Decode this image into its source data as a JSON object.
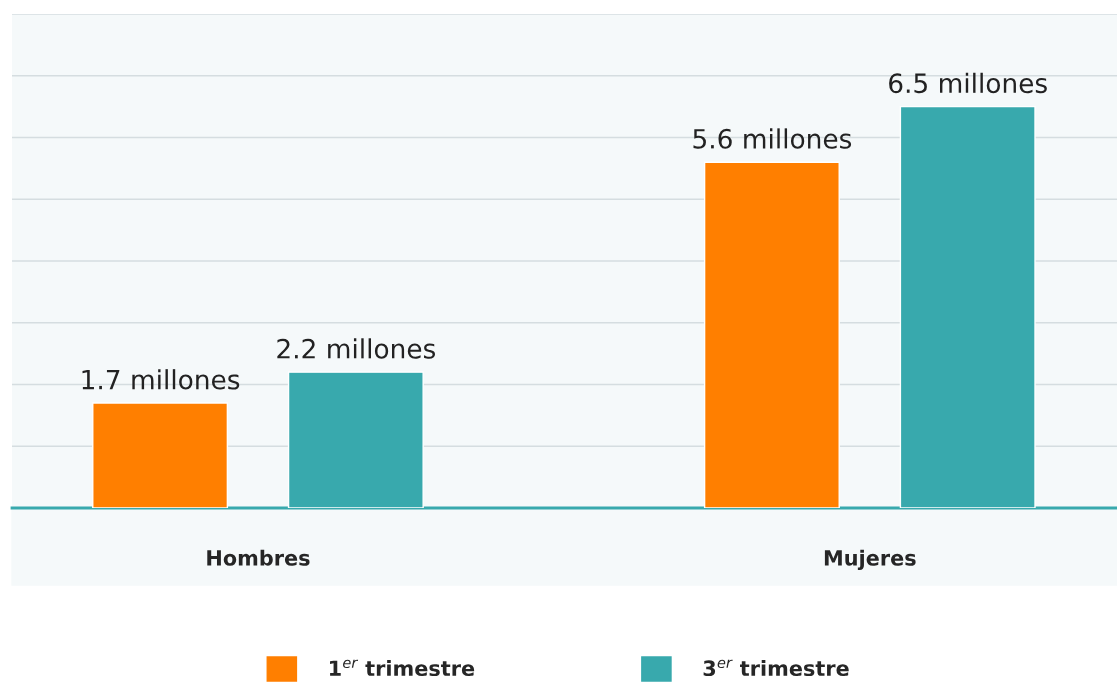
{
  "chart_data": {
    "type": "bar",
    "categories": [
      "Hombres",
      "Mujeres"
    ],
    "series": [
      {
        "name": "1$^{er}$ trimestre",
        "color": "#ff7f00",
        "values": [
          1.7,
          5.6
        ],
        "value_labels": [
          "1.7 millones",
          "5.6 millones"
        ]
      },
      {
        "name": "3$^{er}$ trimestre",
        "color": "#38a9ad",
        "values": [
          2.2,
          6.5
        ],
        "value_labels": [
          "2.2 millones",
          "6.5 millones"
        ]
      }
    ],
    "ylim": [
      0,
      8
    ],
    "yticks": [
      {
        "value": 0,
        "label": null
      },
      {
        "value": 1,
        "label": null
      },
      {
        "value": 2,
        "label": null
      },
      {
        "value": 3,
        "label": null
      },
      {
        "value": 4,
        "label": null
      },
      {
        "value": 5,
        "label": null
      },
      {
        "value": 6,
        "label": null
      },
      {
        "value": 7,
        "label": null
      },
      {
        "value": 8,
        "label": null
      }
    ],
    "tick_labels": "x",
    "grid": "y",
    "legend": "bottom"
  }
}
